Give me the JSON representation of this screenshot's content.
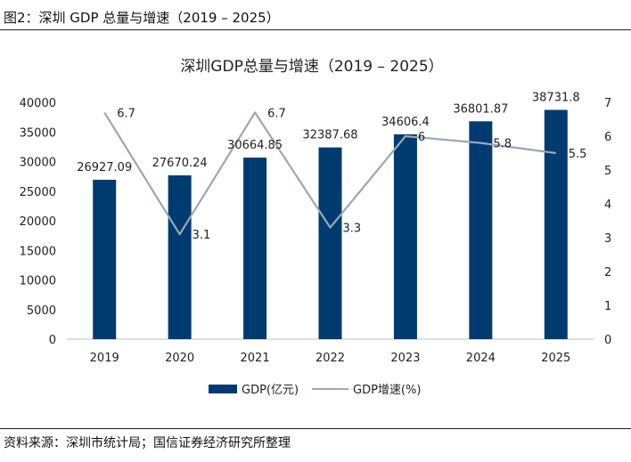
{
  "figure_caption": "图2：深圳 GDP 总量与增速（2019 – 2025）",
  "source_note": "资料来源：深圳市统计局；国信证券经济研究所整理",
  "colors": {
    "bar": "#003b6f",
    "line": "#9aa8b8",
    "text": "#222222",
    "axis": "#bfbfbf"
  },
  "chart_data": {
    "type": "bar+line",
    "title": "深圳GDP总量与增速（2019 – 2025）",
    "categories": [
      "2019",
      "2020",
      "2021",
      "2022",
      "2023",
      "2024",
      "2025"
    ],
    "series": [
      {
        "name": "GDP(亿元)",
        "type": "bar",
        "axis": "left",
        "values": [
          26927.09,
          27670.24,
          30664.85,
          32387.68,
          34606.4,
          36801.87,
          38731.8
        ],
        "labels": [
          "26927.09",
          "27670.24",
          "30664.85",
          "32387.68",
          "34606.4",
          "36801.87",
          "38731.8"
        ]
      },
      {
        "name": "GDP增速(%)",
        "type": "line",
        "axis": "right",
        "values": [
          6.7,
          3.1,
          6.7,
          3.3,
          6.0,
          5.8,
          5.5
        ],
        "labels": [
          "6.7",
          "3.1",
          "6.7",
          "3.3",
          "6",
          "5.8",
          "5.5"
        ]
      }
    ],
    "y_left": {
      "min": 0,
      "max": 40000,
      "step": 5000,
      "ticks": [
        "0",
        "5000",
        "10000",
        "15000",
        "20000",
        "25000",
        "30000",
        "35000",
        "40000"
      ]
    },
    "y_right": {
      "min": 0,
      "max": 7,
      "step": 1,
      "ticks": [
        "0",
        "1",
        "2",
        "3",
        "4",
        "5",
        "6",
        "7"
      ]
    },
    "grid": false,
    "legend": "bottom-center"
  }
}
